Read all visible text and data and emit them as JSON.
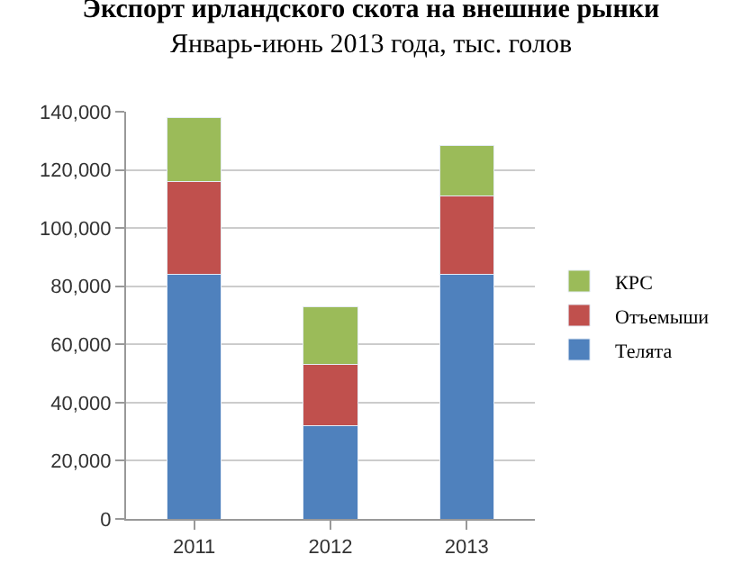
{
  "chart_data": {
    "type": "bar",
    "title": "Экспорт ирландского скота на внешние рынки",
    "subtitle": "Январь-июнь 2013 года, тыс. голов",
    "categories": [
      "2011",
      "2012",
      "2013"
    ],
    "stacked": true,
    "series": [
      {
        "name": "Телята",
        "color": "#4f81bd",
        "values": [
          84000,
          32000,
          84000
        ]
      },
      {
        "name": "Отъемыши",
        "color": "#c0504d",
        "values": [
          32000,
          21000,
          27000
        ]
      },
      {
        "name": "КРС",
        "color": "#9bbb59",
        "values": [
          22000,
          20000,
          17500
        ]
      }
    ],
    "ylim": [
      0,
      140000
    ],
    "yticks": [
      {
        "value": 0,
        "label": "0"
      },
      {
        "value": 20000,
        "label": "20,000"
      },
      {
        "value": 40000,
        "label": "40,000"
      },
      {
        "value": 60000,
        "label": "60,000"
      },
      {
        "value": 80000,
        "label": "80,000"
      },
      {
        "value": 100000,
        "label": "100,000"
      },
      {
        "value": 120000,
        "label": "120,000"
      },
      {
        "value": 140000,
        "label": "140,000"
      }
    ],
    "grid": "y",
    "legend": "right"
  }
}
